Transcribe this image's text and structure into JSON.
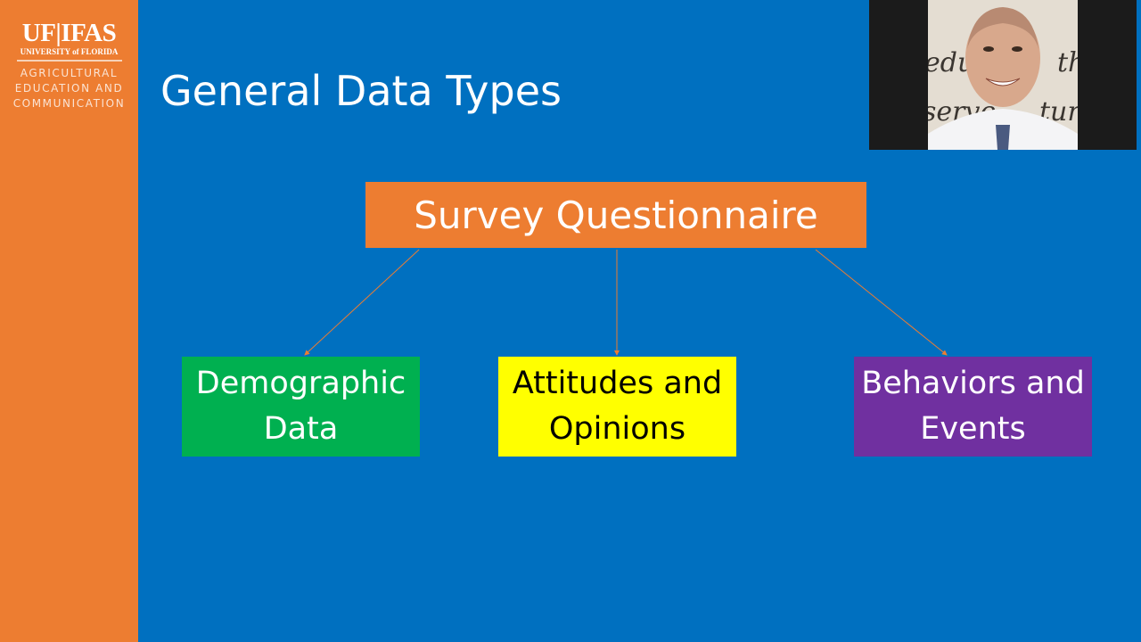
{
  "logo": {
    "brand": "UF|IFAS",
    "university": "UNIVERSITY of FLORIDA",
    "department_lines": [
      "AGRICULTURAL",
      "EDUCATION AND",
      "COMMUNICATION"
    ]
  },
  "slide": {
    "title": "General Data Types",
    "root": "Survey Questionnaire",
    "children": [
      {
        "lines": [
          "Demographic",
          "Data"
        ],
        "color": "#00b050"
      },
      {
        "lines": [
          "Attitudes and",
          "Opinions"
        ],
        "color": "#ffff00"
      },
      {
        "lines": [
          "Behaviors and",
          "Events"
        ],
        "color": "#7030a0"
      }
    ],
    "colors": {
      "background": "#0070c0",
      "accent": "#ed7d31"
    }
  },
  "webcam": {
    "background_text": [
      "edu",
      "th",
      "serve",
      "ture"
    ]
  }
}
